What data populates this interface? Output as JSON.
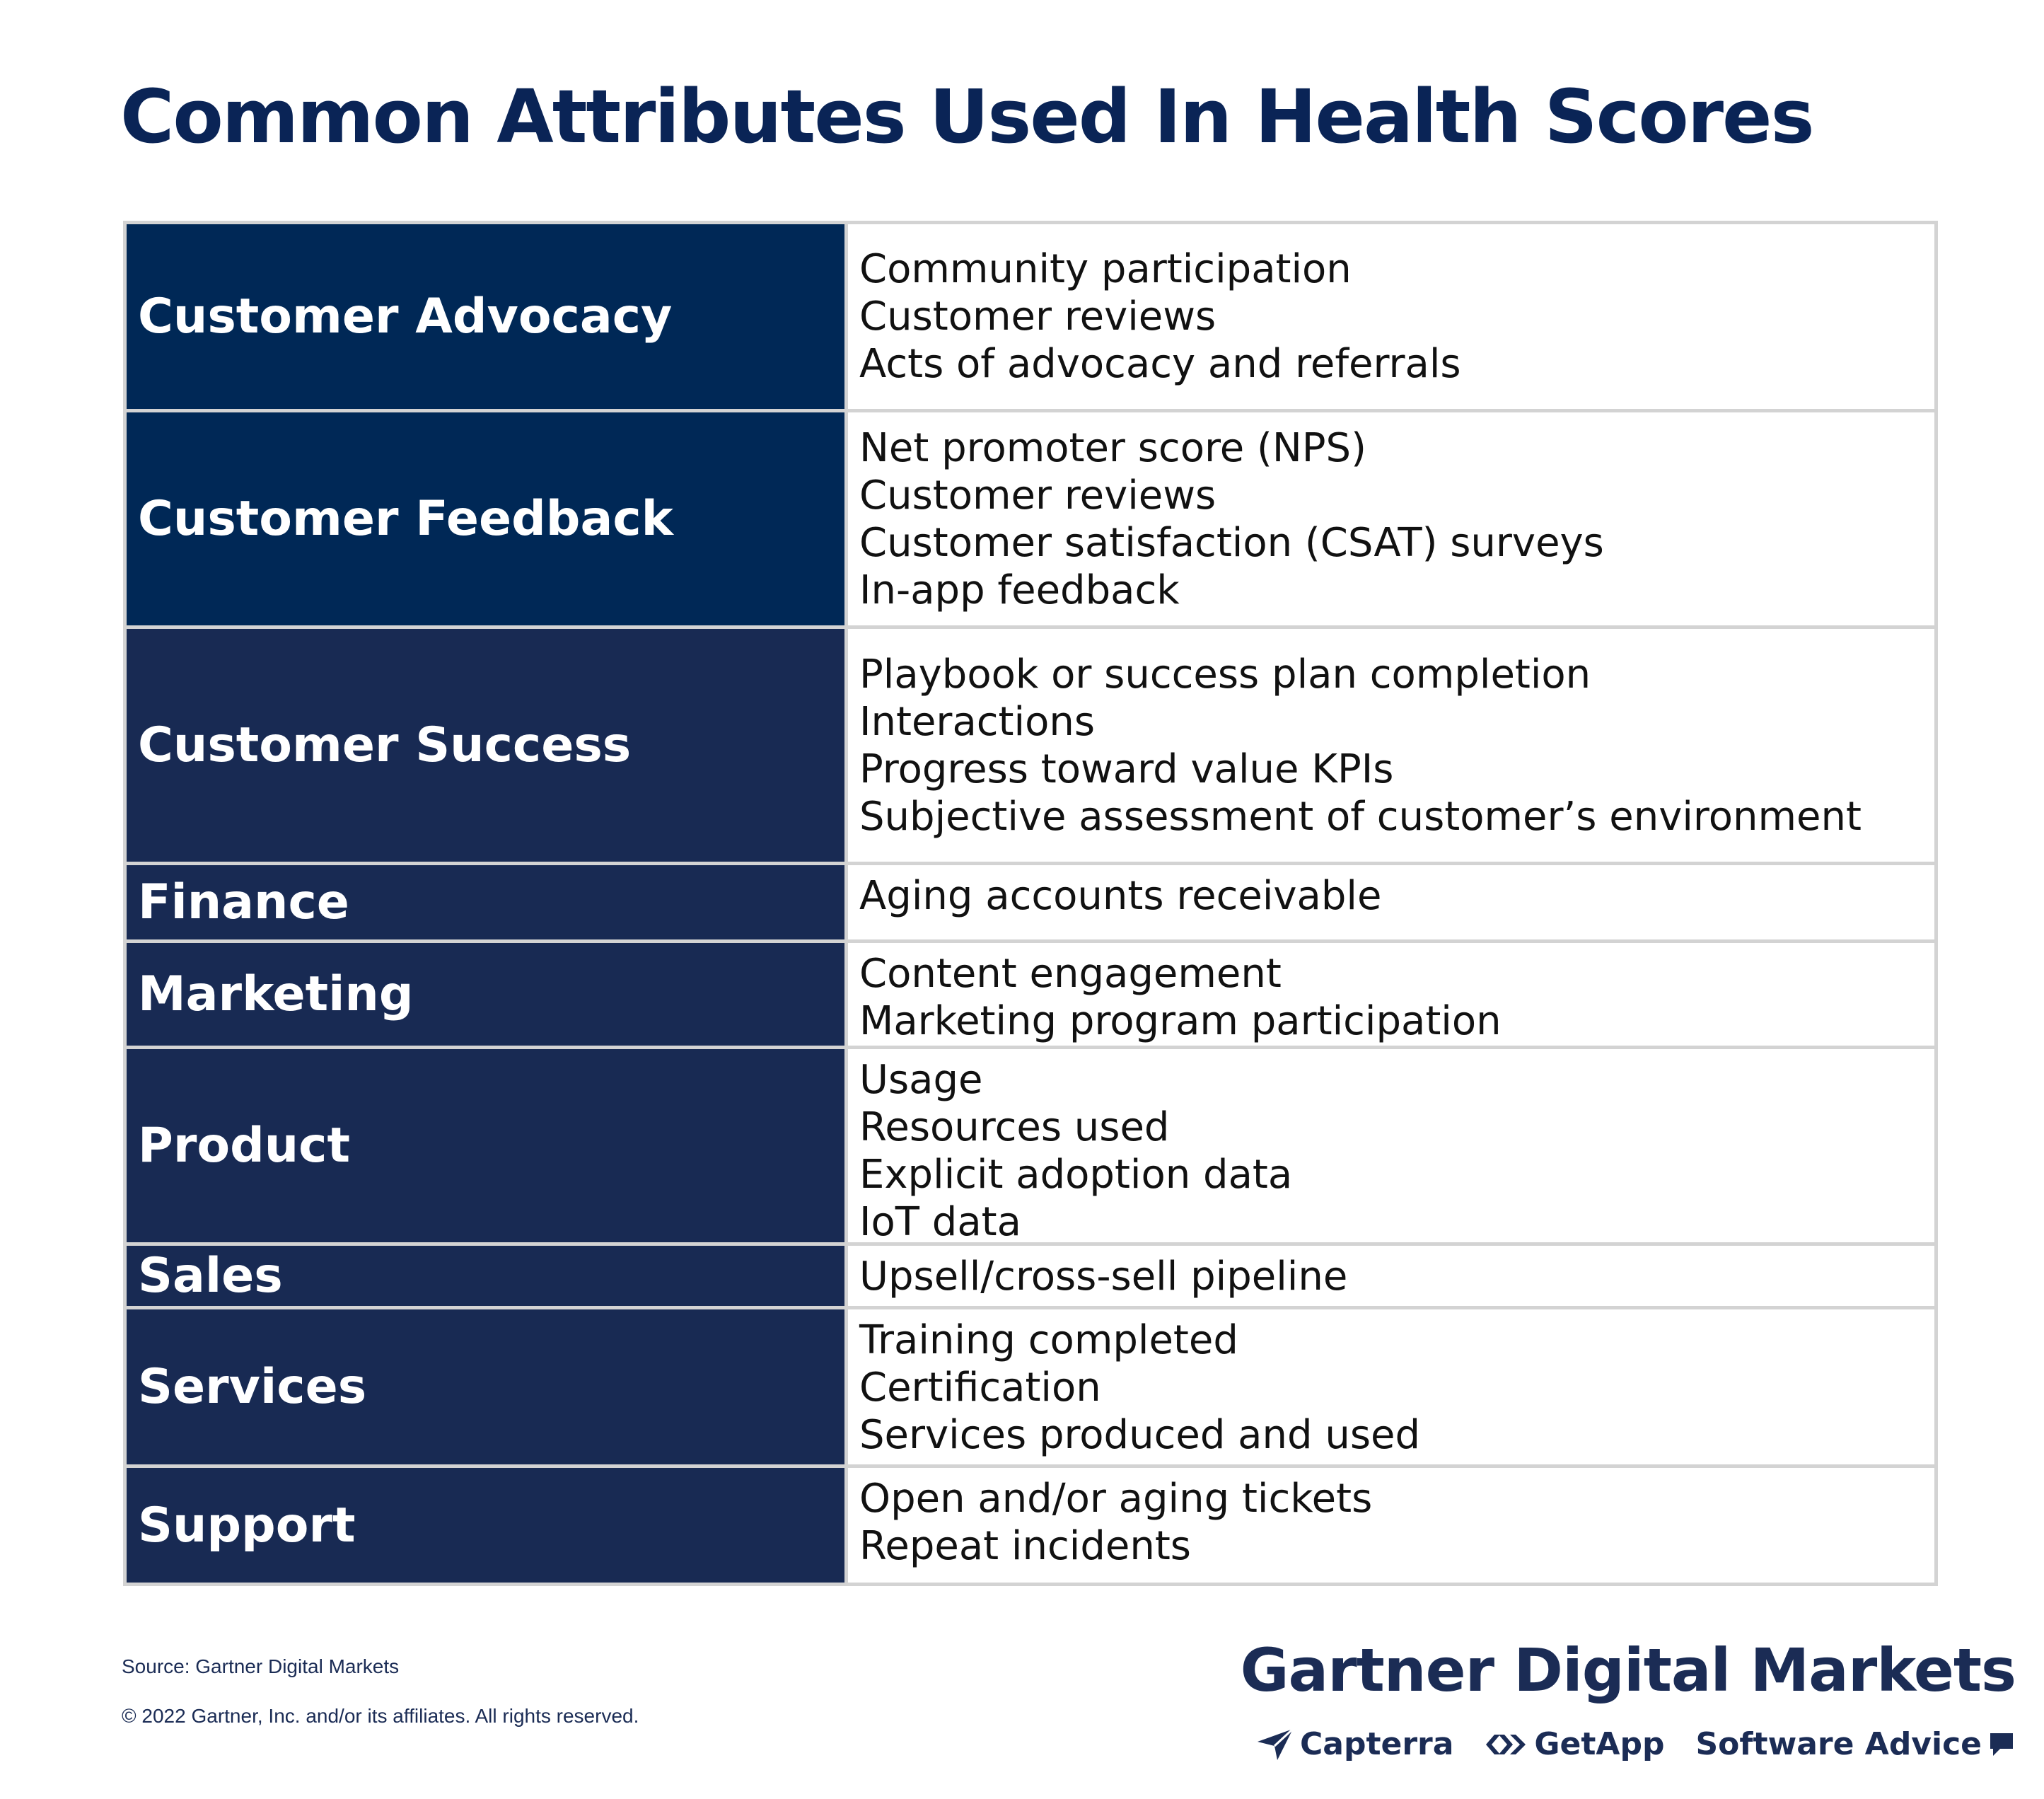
{
  "title": "Common Attributes Used In Health Scores",
  "rows": [
    {
      "category": "Customer Advocacy",
      "attributes": [
        "Community participation",
        "Customer reviews",
        "Acts of advocacy and referrals"
      ]
    },
    {
      "category": "Customer Feedback",
      "attributes": [
        "Net promoter score (NPS)",
        "Customer reviews",
        "Customer satisfaction (CSAT) surveys",
        "In-app feedback"
      ]
    },
    {
      "category": "Customer Success",
      "attributes": [
        "Playbook or success plan completion",
        "Interactions",
        "Progress toward value KPIs",
        "Subjective assessment of customer’s environment"
      ]
    },
    {
      "category": "Finance",
      "attributes": [
        "Aging accounts receivable"
      ]
    },
    {
      "category": "Marketing",
      "attributes": [
        "Content engagement",
        "Marketing program participation"
      ]
    },
    {
      "category": "Product",
      "attributes": [
        "Usage",
        "Resources used",
        "Explicit adoption data",
        "IoT data"
      ]
    },
    {
      "category": "Sales",
      "attributes": [
        "Upsell/cross-sell pipeline"
      ]
    },
    {
      "category": "Services",
      "attributes": [
        "Training completed",
        "Certification",
        "Services produced and used"
      ]
    },
    {
      "category": "Support",
      "attributes": [
        "Open and/or aging tickets",
        "Repeat incidents"
      ]
    }
  ],
  "footer": {
    "source": "Source: Gartner Digital Markets",
    "copyright": "© 2022 Gartner, Inc. and/or its affiliates. All rights reserved."
  },
  "brand": {
    "name": "Gartner Digital Markets",
    "sub_brands": [
      {
        "name": "Capterra",
        "icon": "capterra-logo-icon"
      },
      {
        "name": "GetApp",
        "icon": "getapp-logo-icon"
      },
      {
        "name": "Software Advice",
        "icon": "software-advice-logo-icon"
      }
    ]
  },
  "colors": {
    "title": "#0a2456",
    "category_bg": "#182a53",
    "category_bg_dark": "#002856",
    "grid_line": "#d3d3d3"
  }
}
